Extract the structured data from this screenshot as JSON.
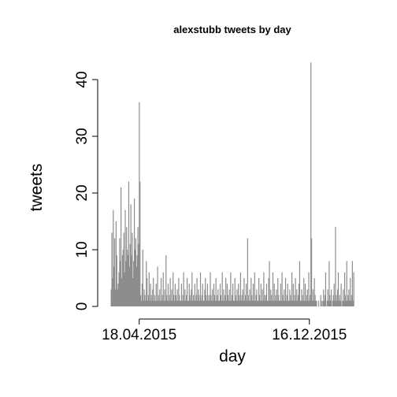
{
  "chart_data": {
    "type": "bar",
    "title": "alexstubb tweets by day",
    "xlabel": "day",
    "ylabel": "tweets",
    "ylim": [
      0,
      44
    ],
    "yticks": [
      0,
      10,
      20,
      30,
      40
    ],
    "x_tick_labels": [
      "18.04.2015",
      "16.12.2015"
    ],
    "x_tick_day_index": [
      40,
      282
    ],
    "color": "#8c8c8c",
    "series": [
      {
        "values": [
          3,
          13,
          5,
          17,
          7,
          12,
          3,
          15,
          9,
          3,
          4,
          6,
          12,
          8,
          21,
          5,
          9,
          10,
          13,
          6,
          17,
          8,
          14,
          10,
          9,
          22,
          7,
          11,
          18,
          9,
          13,
          5,
          8,
          19,
          10,
          12,
          7,
          9,
          14,
          11,
          36,
          22,
          2,
          1,
          4,
          10,
          1,
          3,
          2,
          1,
          8,
          5,
          1,
          2,
          6,
          1,
          4,
          2,
          1,
          3,
          5,
          1,
          2,
          1,
          4,
          1,
          7,
          2,
          1,
          3,
          1,
          5,
          1,
          2,
          6,
          1,
          3,
          1,
          9,
          2,
          1,
          4,
          1,
          2,
          5,
          1,
          3,
          1,
          6,
          2,
          1,
          4,
          2,
          1,
          3,
          1,
          5,
          2,
          1,
          1,
          4,
          1,
          2,
          6,
          1,
          3,
          1,
          2,
          5,
          1,
          1,
          4,
          2,
          1,
          3,
          6,
          1,
          2,
          1,
          4,
          1,
          2,
          5,
          1,
          3,
          2,
          1,
          6,
          1,
          2,
          4,
          1,
          1,
          3,
          5,
          2,
          1,
          4,
          1,
          2,
          1,
          6,
          2,
          1,
          3,
          1,
          4,
          2,
          1,
          5,
          1,
          2,
          3,
          1,
          1,
          4,
          2,
          1,
          6,
          1,
          3,
          1,
          2,
          5,
          1,
          4,
          2,
          1,
          3,
          1,
          6,
          1,
          2,
          4,
          1,
          1,
          5,
          2,
          1,
          3,
          1,
          4,
          2,
          1,
          6,
          1,
          2,
          3,
          1,
          5,
          1,
          2,
          4,
          1,
          12,
          2,
          1,
          3,
          1,
          5,
          2,
          1,
          4,
          1,
          6,
          1,
          2,
          3,
          1,
          1,
          5,
          2,
          1,
          4,
          1,
          3,
          1,
          6,
          2,
          1,
          2,
          4,
          1,
          1,
          5,
          8,
          1,
          3,
          2,
          1,
          6,
          1,
          4,
          1,
          2,
          3,
          1,
          5,
          2,
          1,
          1,
          4,
          1,
          6,
          2,
          1,
          3,
          1,
          5,
          1,
          2,
          4,
          1,
          1,
          3,
          2,
          1,
          6,
          1,
          4,
          1,
          2,
          5,
          1,
          3,
          1,
          2,
          4,
          8,
          1,
          1,
          3,
          2,
          1,
          5,
          1,
          4,
          1,
          2,
          3,
          1,
          6,
          1,
          2,
          43,
          12,
          1,
          3,
          1,
          5,
          2,
          1,
          1,
          0,
          0,
          1,
          0,
          0,
          2,
          1,
          0,
          1,
          3,
          1,
          2,
          6,
          0,
          1,
          3,
          1,
          8,
          2,
          1,
          3,
          0,
          1,
          2,
          4,
          1,
          14,
          2,
          1,
          3,
          6,
          1,
          2,
          1,
          4,
          0,
          1,
          3,
          1,
          6,
          2,
          1,
          8,
          1,
          2,
          3,
          1,
          5,
          1,
          2,
          8,
          1,
          6
        ]
      }
    ]
  }
}
